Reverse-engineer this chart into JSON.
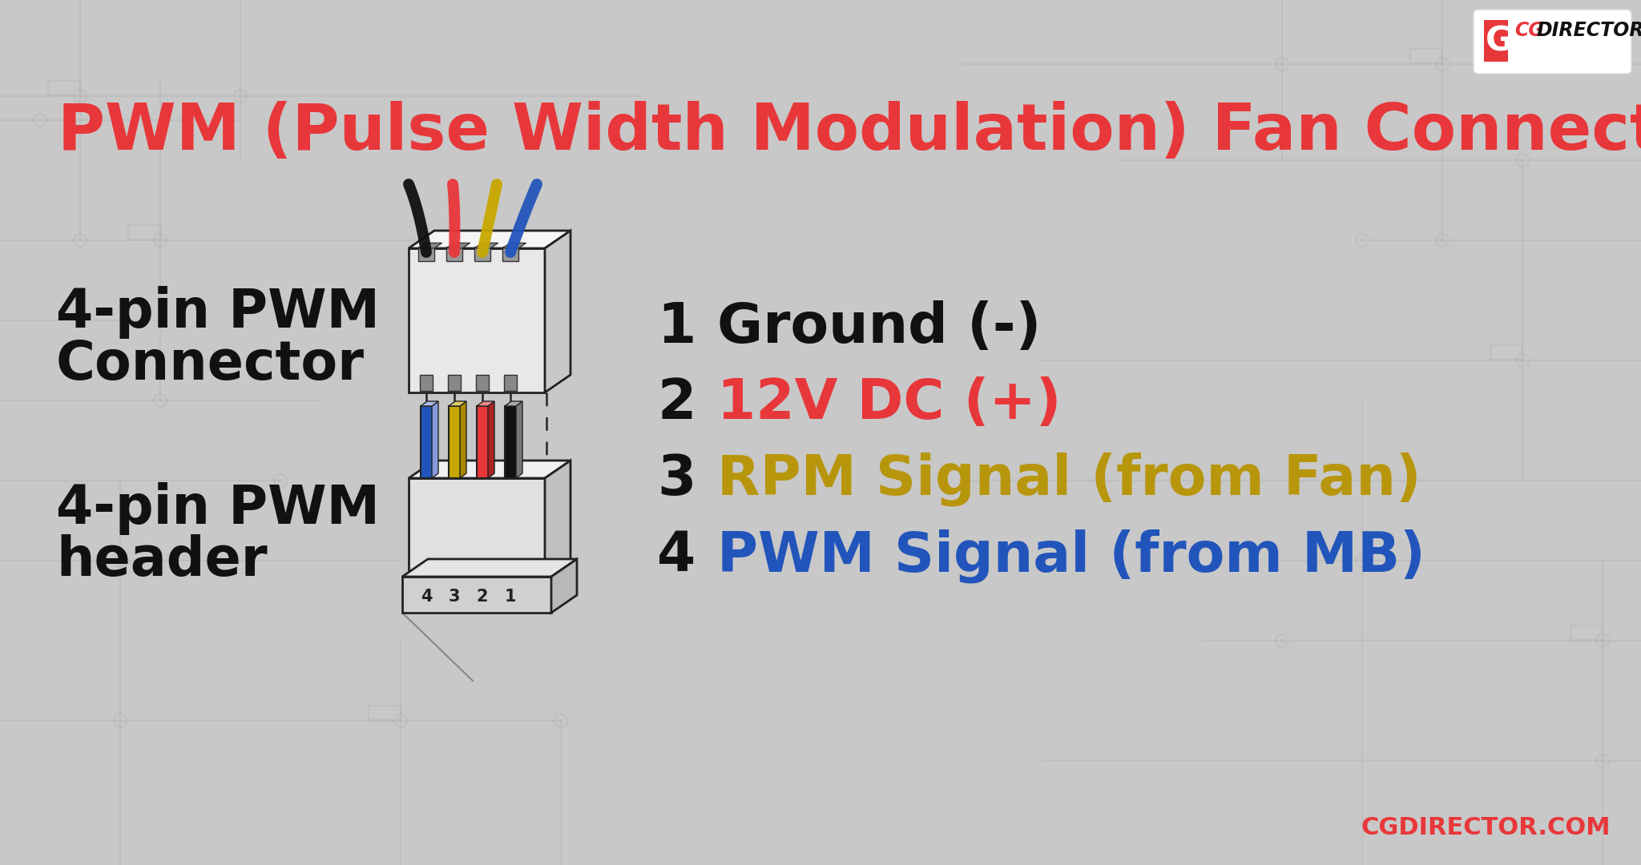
{
  "title": "PWM (Pulse Width Modulation) Fan Connector",
  "title_color": "#E8373A",
  "bg_color": "#C8C8C8",
  "text_color": "#111111",
  "label_left_line1": "4-pin PWM",
  "label_left_line2": "Connector",
  "label_left2_line1": "4-pin PWM",
  "label_left2_line2": "header",
  "pins": [
    {
      "num": "1",
      "label": "Ground (-)",
      "color": "#111111"
    },
    {
      "num": "2",
      "label": "12V DC (+)",
      "color": "#E8373A"
    },
    {
      "num": "3",
      "label": "RPM Signal (from Fan)",
      "color": "#B8960C"
    },
    {
      "num": "4",
      "label": "PWM Signal (from MB)",
      "color": "#2255BB"
    }
  ],
  "wire_colors": [
    "#111111",
    "#E8373A",
    "#C8A800",
    "#2255BB"
  ],
  "header_pin_colors": [
    "#2255BB",
    "#C8A800",
    "#E8373A",
    "#111111"
  ],
  "header_pin_labels": [
    "4",
    "3",
    "2",
    "1"
  ],
  "watermark": "CGDIRECTOR.COM",
  "watermark_color": "#E8373A",
  "circuit_color": "#B0B0B0"
}
